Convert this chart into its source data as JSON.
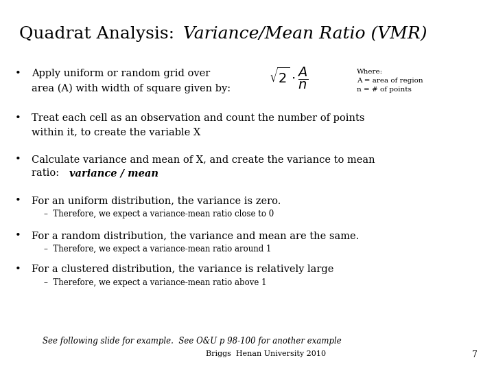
{
  "title_normal": "Quadrat Analysis: ",
  "title_italic": "Variance/Mean Ratio (VMR)",
  "background_color": "#ffffff",
  "text_color": "#000000",
  "bullet1_line1": "Apply uniform or random grid over",
  "bullet1_line2": "area (A) with width of square given by:",
  "formula": "$\\sqrt{2} \\cdot \\dfrac{A}{n}$",
  "where_line1": "Where:",
  "where_line2": "A = area of region",
  "where_line3": "n = # of points",
  "bullet2_line1": "Treat each cell as an observation and count the number of points",
  "bullet2_line2": "within it, to create the variable X",
  "bullet3_line1": "Calculate variance and mean of X, and create the variance to mean",
  "bullet3_line2_normal": "ratio:  ",
  "bullet3_line2_italic": "variance / mean",
  "bullet4": "For an uniform distribution, the variance is zero.",
  "sub4": "Therefore, we expect a variance-mean ratio close to 0",
  "bullet5": "For a random distribution, the variance and mean are the same.",
  "sub5": "Therefore, we expect a variance-mean ratio around 1",
  "bullet6": "For a clustered distribution, the variance is relatively large",
  "sub6": "Therefore, we expect a variance-mean ratio above 1",
  "footer_italic": "See following slide for example.  See O&U p 98-100 for another example",
  "footer_normal": "Briggs  Henan University 2010",
  "page_number": "7",
  "title_fs": 18,
  "fs_main": 10.5,
  "fs_small": 8.5,
  "fs_where": 7.5
}
